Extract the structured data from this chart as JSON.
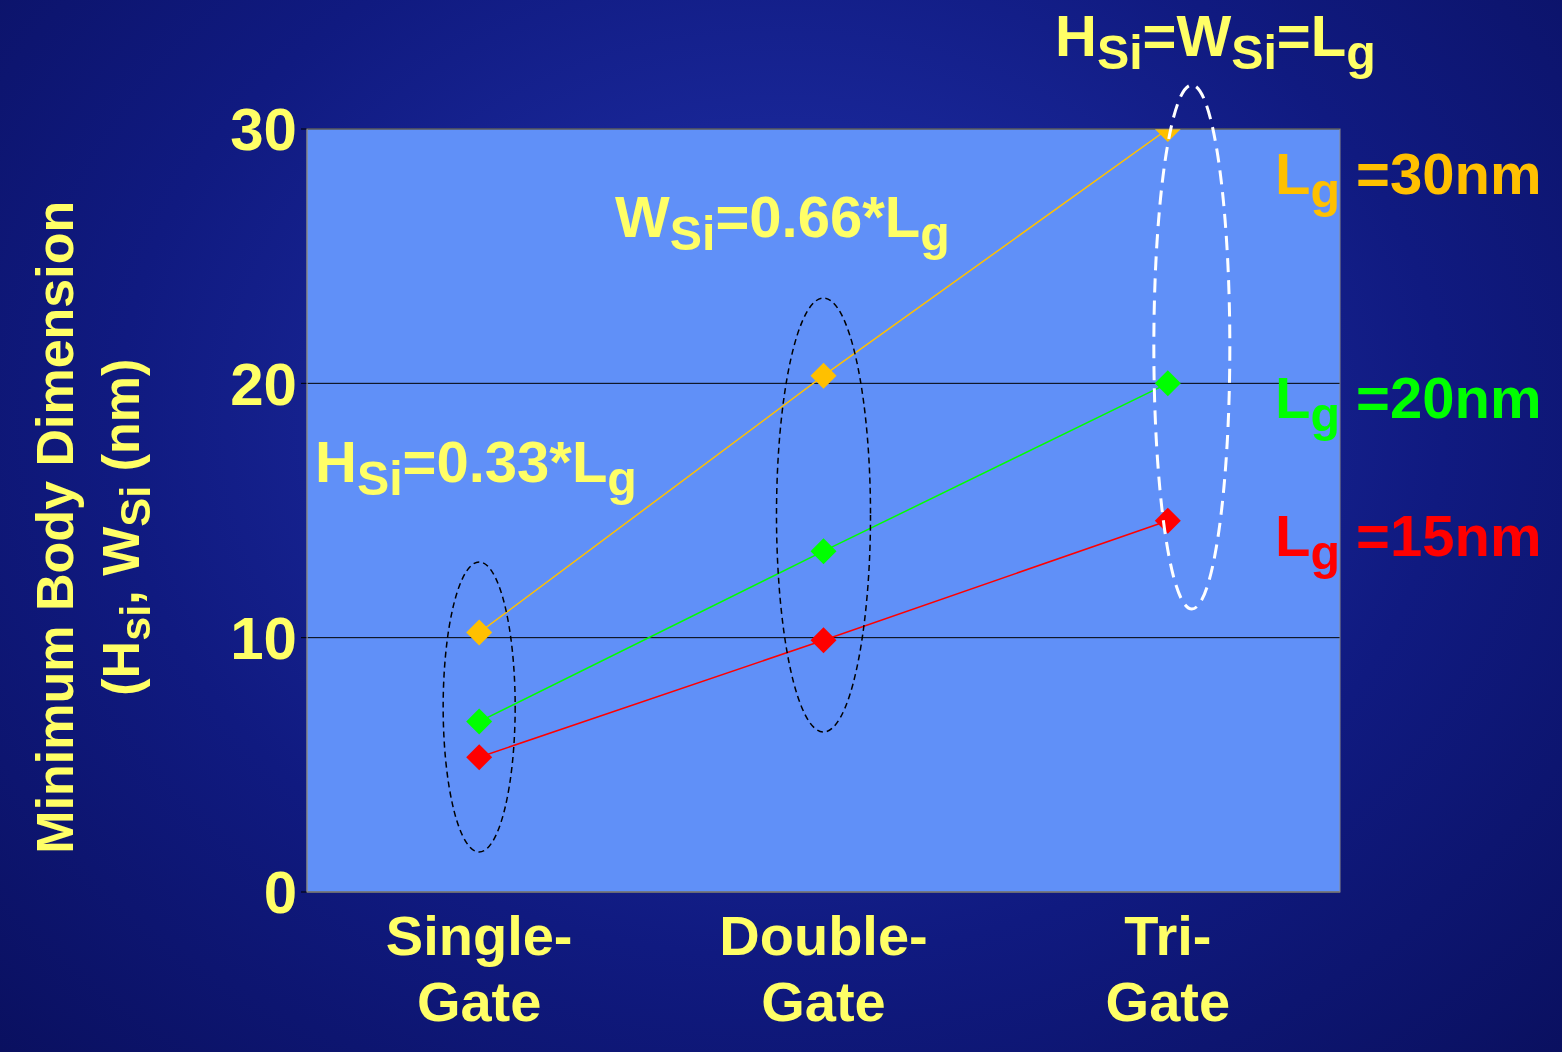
{
  "chart_data": {
    "type": "line",
    "ylabel": "Minimum Body Dimension (H$_{si}$, W$_{Si}$ (nm)",
    "categories": [
      "Single-Gate",
      "Double-Gate",
      "Tri-Gate"
    ],
    "series": [
      {
        "name": "L$_{g}$ =30nm",
        "color": "#ffc000",
        "values": [
          10.2,
          20.3,
          30
        ]
      },
      {
        "name": "L$_{g}$ =20nm",
        "color": "#00ff00",
        "values": [
          6.7,
          13.4,
          20
        ]
      },
      {
        "name": "L$_{g}$ =15nm",
        "color": "#ff0000",
        "values": [
          5.3,
          9.9,
          14.6
        ]
      }
    ],
    "ylim": [
      0,
      30
    ],
    "yticks": [
      0,
      10,
      20,
      30
    ],
    "grid": "y",
    "marker": "diamond",
    "annotations": [
      "H$_{Si}$=0.33*L$_{g}$",
      "W$_{Si}$=0.66*L$_{g}$",
      "H$_{Si}$=W$_{Si}$=L$_{g}$"
    ]
  }
}
